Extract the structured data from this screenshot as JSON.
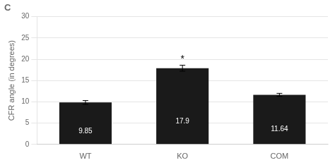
{
  "chart_data": {
    "type": "bar",
    "title": "C",
    "categories": [
      "WT",
      "KO",
      "COM"
    ],
    "values": [
      9.85,
      17.9,
      11.64
    ],
    "value_labels": [
      "9.85",
      "17.9",
      "11.64"
    ],
    "errors": [
      0.45,
      0.7,
      0.35
    ],
    "color": "#1a1a1a",
    "ylabel": "CFR angle (in degrees)",
    "ylim": [
      0,
      30
    ],
    "yticks": [
      0,
      5,
      10,
      15,
      20,
      25,
      30
    ],
    "grid": true,
    "data_labels": true,
    "annotations": [
      {
        "text": "*",
        "category": "KO"
      }
    ]
  }
}
